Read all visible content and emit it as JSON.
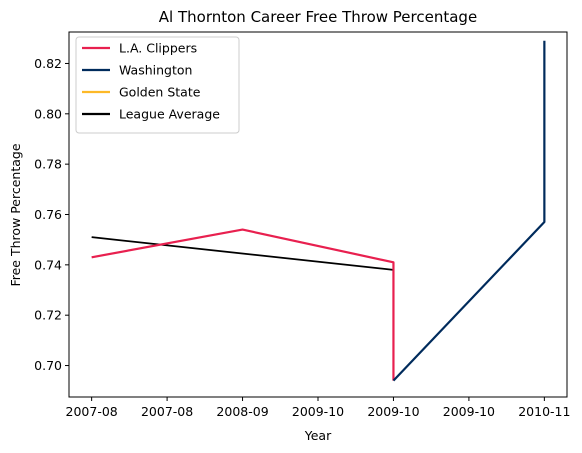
{
  "chart_data": {
    "type": "line",
    "title": "Al Thornton Career Free Throw Percentage",
    "xlabel": "Year",
    "ylabel": "Free Throw Percentage",
    "x_tick_labels": [
      "2007-08",
      "2007-08",
      "2008-09",
      "2009-10",
      "2009-10",
      "2009-10",
      "2010-11"
    ],
    "y_tick_labels": [
      "0.70",
      "0.72",
      "0.74",
      "0.76",
      "0.78",
      "0.80",
      "0.82"
    ],
    "x_positions": [
      0,
      0.5,
      1,
      1.5,
      2,
      2.5,
      3
    ],
    "y_ticks": [
      0.7,
      0.72,
      0.74,
      0.76,
      0.78,
      0.8,
      0.82
    ],
    "xlim": [
      -0.15,
      3.15
    ],
    "ylim": [
      0.6875,
      0.8325
    ],
    "legend_position": "upper-left",
    "series": [
      {
        "name": "L.A. Clippers",
        "color": "#e8204f",
        "points": [
          [
            0,
            0.743
          ],
          [
            1,
            0.754
          ],
          [
            2,
            0.741
          ],
          [
            2,
            0.694
          ]
        ]
      },
      {
        "name": "Washington",
        "color": "#002b5c",
        "points": [
          [
            2,
            0.694
          ],
          [
            3,
            0.757
          ],
          [
            3,
            0.829
          ]
        ]
      },
      {
        "name": "Golden State",
        "color": "#fdb927",
        "points": []
      },
      {
        "name": "League Average",
        "color": "#000000",
        "points": [
          [
            0,
            0.751
          ],
          [
            2,
            0.738
          ]
        ]
      }
    ]
  }
}
